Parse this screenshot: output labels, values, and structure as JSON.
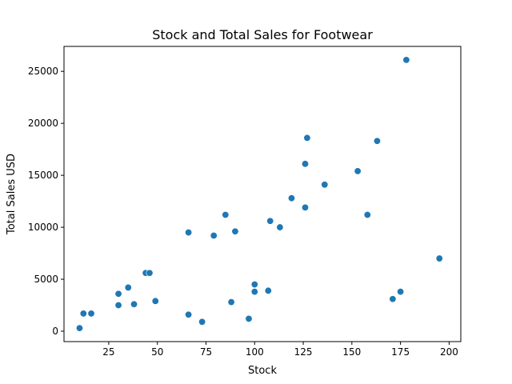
{
  "chart_data": {
    "type": "scatter",
    "title": "Stock and Total Sales for Footwear",
    "xlabel": "Stock",
    "ylabel": "Total Sales USD",
    "xlim": [
      2,
      206
    ],
    "ylim": [
      -1000,
      27400
    ],
    "xticks": [
      25,
      50,
      75,
      100,
      125,
      150,
      175,
      200
    ],
    "yticks": [
      0,
      5000,
      10000,
      15000,
      20000,
      25000
    ],
    "grid": false,
    "color": "#1f77b4",
    "points": [
      {
        "x": 10,
        "y": 300
      },
      {
        "x": 12,
        "y": 1700
      },
      {
        "x": 16,
        "y": 1700
      },
      {
        "x": 30,
        "y": 3600
      },
      {
        "x": 30,
        "y": 2500
      },
      {
        "x": 35,
        "y": 4200
      },
      {
        "x": 38,
        "y": 2600
      },
      {
        "x": 44,
        "y": 5600
      },
      {
        "x": 46,
        "y": 5600
      },
      {
        "x": 49,
        "y": 2900
      },
      {
        "x": 66,
        "y": 9500
      },
      {
        "x": 66,
        "y": 1600
      },
      {
        "x": 73,
        "y": 900
      },
      {
        "x": 79,
        "y": 9200
      },
      {
        "x": 85,
        "y": 11200
      },
      {
        "x": 88,
        "y": 2800
      },
      {
        "x": 90,
        "y": 9600
      },
      {
        "x": 97,
        "y": 1200
      },
      {
        "x": 100,
        "y": 4500
      },
      {
        "x": 100,
        "y": 3800
      },
      {
        "x": 107,
        "y": 3900
      },
      {
        "x": 108,
        "y": 10600
      },
      {
        "x": 113,
        "y": 10000
      },
      {
        "x": 119,
        "y": 12800
      },
      {
        "x": 126,
        "y": 16100
      },
      {
        "x": 126,
        "y": 11900
      },
      {
        "x": 127,
        "y": 18600
      },
      {
        "x": 136,
        "y": 14100
      },
      {
        "x": 153,
        "y": 15400
      },
      {
        "x": 158,
        "y": 11200
      },
      {
        "x": 163,
        "y": 18300
      },
      {
        "x": 171,
        "y": 3100
      },
      {
        "x": 175,
        "y": 3800
      },
      {
        "x": 178,
        "y": 26100
      },
      {
        "x": 195,
        "y": 7000
      }
    ]
  }
}
